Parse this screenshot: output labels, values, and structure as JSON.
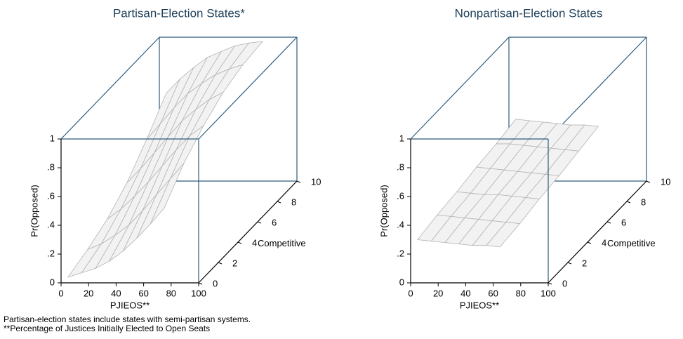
{
  "chart_data": [
    {
      "type": "surface",
      "title": "Partisan-Election States*",
      "xlabel": "PJIEOS**",
      "ylabel": "Pr(Opposed)",
      "zlabel": "Competitive",
      "xlim": [
        0,
        100
      ],
      "xticks": [
        0,
        20,
        40,
        60,
        80,
        100
      ],
      "ylim": [
        0,
        1
      ],
      "yticks": [
        0,
        {
          "value": 0.2,
          "label": ".2"
        },
        {
          "value": 0.4,
          "label": ".4"
        },
        {
          "value": 0.6,
          "label": ".6"
        },
        {
          "value": 0.8,
          "label": ".8"
        },
        1
      ],
      "zlim": [
        0,
        10
      ],
      "zticks": [
        0,
        2,
        4,
        6,
        8,
        10
      ],
      "x": [
        5,
        15,
        25,
        35,
        45,
        55,
        65,
        75
      ],
      "z": [
        0,
        2,
        4,
        6,
        8,
        10
      ],
      "values": [
        [
          0.04,
          0.07,
          0.1,
          0.15,
          0.22,
          0.31,
          0.41,
          0.52
        ],
        [
          0.09,
          0.13,
          0.19,
          0.26,
          0.36,
          0.47,
          0.58,
          0.69
        ],
        [
          0.16,
          0.23,
          0.32,
          0.42,
          0.53,
          0.64,
          0.74,
          0.81
        ],
        [
          0.27,
          0.37,
          0.48,
          0.59,
          0.7,
          0.78,
          0.85,
          0.9
        ],
        [
          0.43,
          0.54,
          0.65,
          0.75,
          0.82,
          0.88,
          0.92,
          0.95
        ],
        [
          0.61,
          0.71,
          0.79,
          0.86,
          0.9,
          0.94,
          0.96,
          0.97
        ]
      ]
    },
    {
      "type": "surface",
      "title": "Nonpartisan-Election States",
      "xlabel": "PJIEOS**",
      "ylabel": "Pr(Opposed)",
      "zlabel": "Competitive",
      "xlim": [
        0,
        100
      ],
      "xticks": [
        0,
        20,
        40,
        60,
        80,
        100
      ],
      "ylim": [
        0,
        1
      ],
      "yticks": [
        0,
        {
          "value": 0.2,
          "label": ".2"
        },
        {
          "value": 0.4,
          "label": ".4"
        },
        {
          "value": 0.6,
          "label": ".6"
        },
        {
          "value": 0.8,
          "label": ".8"
        },
        1
      ],
      "zlim": [
        0,
        10
      ],
      "zticks": [
        0,
        2,
        4,
        6,
        8,
        10
      ],
      "x": [
        5,
        15,
        25,
        35,
        45,
        55,
        65
      ],
      "z": [
        0,
        2,
        4,
        6,
        8,
        10
      ],
      "values": [
        [
          0.3,
          0.29,
          0.28,
          0.27,
          0.26,
          0.26,
          0.25
        ],
        [
          0.33,
          0.32,
          0.31,
          0.3,
          0.29,
          0.28,
          0.27
        ],
        [
          0.35,
          0.34,
          0.33,
          0.33,
          0.32,
          0.31,
          0.3
        ],
        [
          0.38,
          0.37,
          0.36,
          0.35,
          0.34,
          0.33,
          0.32
        ],
        [
          0.4,
          0.4,
          0.39,
          0.38,
          0.37,
          0.36,
          0.35
        ],
        [
          0.43,
          0.42,
          0.41,
          0.4,
          0.39,
          0.39,
          0.38
        ]
      ]
    }
  ],
  "notes": [
    "Partisan-election states include states with semi-partisan systems.",
    "**Percentage of Justices Initially Elected to Open Seats"
  ]
}
